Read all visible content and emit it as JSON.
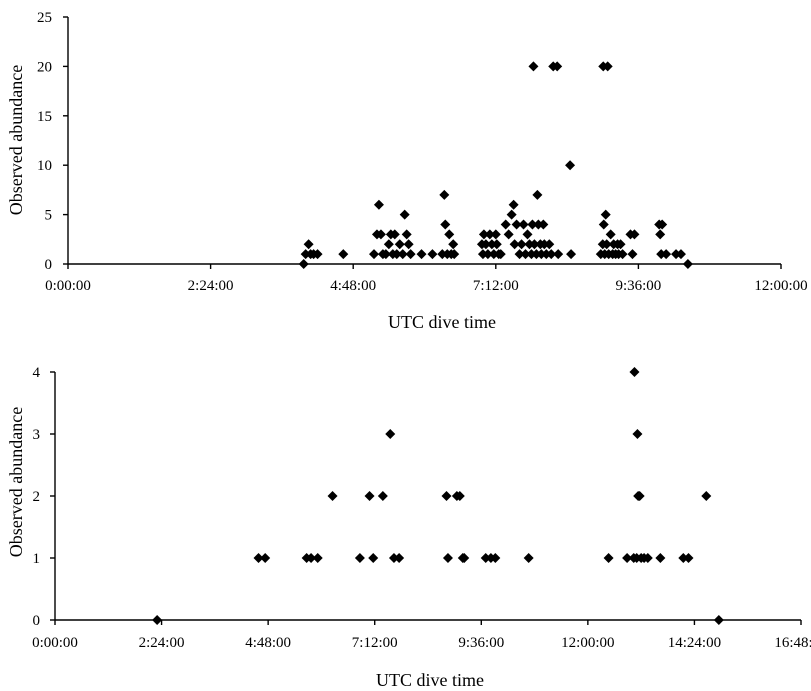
{
  "chart_data": [
    {
      "type": "scatter",
      "xlabel": "UTC dive time",
      "ylabel": "Observed abundance",
      "xlim": [
        "0:00:00",
        "12:00:00"
      ],
      "ylim": [
        0,
        25
      ],
      "x_ticks": [
        "0:00:00",
        "2:24:00",
        "4:48:00",
        "7:12:00",
        "9:36:00",
        "12:00:00"
      ],
      "y_ticks": [
        "0",
        "5",
        "10",
        "15",
        "20",
        "25"
      ],
      "grid": false,
      "marker": "diamond",
      "color": "#000000",
      "points": [
        {
          "x": "3:58:00",
          "y": 0
        },
        {
          "x": "4:00:00",
          "y": 1
        },
        {
          "x": "4:03:00",
          "y": 2
        },
        {
          "x": "4:05:00",
          "y": 1
        },
        {
          "x": "4:08:00",
          "y": 1
        },
        {
          "x": "4:12:00",
          "y": 1
        },
        {
          "x": "4:38:00",
          "y": 1
        },
        {
          "x": "5:09:00",
          "y": 1
        },
        {
          "x": "5:12:00",
          "y": 3
        },
        {
          "x": "5:14:00",
          "y": 6
        },
        {
          "x": "5:16:00",
          "y": 3
        },
        {
          "x": "5:18:00",
          "y": 1
        },
        {
          "x": "5:21:00",
          "y": 1
        },
        {
          "x": "5:24:00",
          "y": 2
        },
        {
          "x": "5:26:00",
          "y": 3
        },
        {
          "x": "5:28:00",
          "y": 1
        },
        {
          "x": "5:30:00",
          "y": 3
        },
        {
          "x": "5:32:00",
          "y": 1
        },
        {
          "x": "5:35:00",
          "y": 2
        },
        {
          "x": "5:38:00",
          "y": 1
        },
        {
          "x": "5:40:00",
          "y": 5
        },
        {
          "x": "5:42:00",
          "y": 3
        },
        {
          "x": "5:44:00",
          "y": 2
        },
        {
          "x": "5:46:00",
          "y": 1
        },
        {
          "x": "5:57:00",
          "y": 1
        },
        {
          "x": "6:08:00",
          "y": 1
        },
        {
          "x": "6:18:00",
          "y": 1
        },
        {
          "x": "6:20:00",
          "y": 7
        },
        {
          "x": "6:21:00",
          "y": 4
        },
        {
          "x": "6:23:00",
          "y": 1
        },
        {
          "x": "6:25:00",
          "y": 3
        },
        {
          "x": "6:27:00",
          "y": 1
        },
        {
          "x": "6:29:00",
          "y": 2
        },
        {
          "x": "6:30:00",
          "y": 1
        },
        {
          "x": "6:58:00",
          "y": 2
        },
        {
          "x": "6:59:00",
          "y": 1
        },
        {
          "x": "7:00:00",
          "y": 3
        },
        {
          "x": "7:02:00",
          "y": 2
        },
        {
          "x": "7:04:00",
          "y": 1
        },
        {
          "x": "7:06:00",
          "y": 3
        },
        {
          "x": "7:08:00",
          "y": 2
        },
        {
          "x": "7:10:00",
          "y": 1
        },
        {
          "x": "7:12:00",
          "y": 3
        },
        {
          "x": "7:13:00",
          "y": 2
        },
        {
          "x": "7:15:00",
          "y": 1
        },
        {
          "x": "7:17:00",
          "y": 1
        },
        {
          "x": "7:22:00",
          "y": 4
        },
        {
          "x": "7:25:00",
          "y": 3
        },
        {
          "x": "7:28:00",
          "y": 5
        },
        {
          "x": "7:30:00",
          "y": 6
        },
        {
          "x": "7:31:00",
          "y": 2
        },
        {
          "x": "7:33:00",
          "y": 4
        },
        {
          "x": "7:36:00",
          "y": 1
        },
        {
          "x": "7:38:00",
          "y": 2
        },
        {
          "x": "7:40:00",
          "y": 4
        },
        {
          "x": "7:42:00",
          "y": 1
        },
        {
          "x": "7:44:00",
          "y": 3
        },
        {
          "x": "7:46:00",
          "y": 2
        },
        {
          "x": "7:48:00",
          "y": 1
        },
        {
          "x": "7:49:00",
          "y": 4
        },
        {
          "x": "7:50:00",
          "y": 20
        },
        {
          "x": "7:51:00",
          "y": 2
        },
        {
          "x": "7:53:00",
          "y": 1
        },
        {
          "x": "7:54:00",
          "y": 7
        },
        {
          "x": "7:55:00",
          "y": 4
        },
        {
          "x": "7:57:00",
          "y": 2
        },
        {
          "x": "7:58:00",
          "y": 1
        },
        {
          "x": "8:00:00",
          "y": 4
        },
        {
          "x": "8:01:00",
          "y": 2
        },
        {
          "x": "8:03:00",
          "y": 1
        },
        {
          "x": "8:06:00",
          "y": 2
        },
        {
          "x": "8:08:00",
          "y": 1
        },
        {
          "x": "8:10:00",
          "y": 20
        },
        {
          "x": "8:14:00",
          "y": 20
        },
        {
          "x": "8:15:00",
          "y": 1
        },
        {
          "x": "8:27:00",
          "y": 10
        },
        {
          "x": "8:28:00",
          "y": 1
        },
        {
          "x": "8:58:00",
          "y": 1
        },
        {
          "x": "9:00:00",
          "y": 2
        },
        {
          "x": "9:00:30",
          "y": 20
        },
        {
          "x": "9:01:00",
          "y": 4
        },
        {
          "x": "9:02:00",
          "y": 1
        },
        {
          "x": "9:03:00",
          "y": 5
        },
        {
          "x": "9:04:00",
          "y": 2
        },
        {
          "x": "9:05:00",
          "y": 20
        },
        {
          "x": "9:06:00",
          "y": 1
        },
        {
          "x": "9:08:00",
          "y": 3
        },
        {
          "x": "9:10:00",
          "y": 1
        },
        {
          "x": "9:11:00",
          "y": 2
        },
        {
          "x": "9:13:00",
          "y": 1
        },
        {
          "x": "9:15:00",
          "y": 2
        },
        {
          "x": "9:16:00",
          "y": 1
        },
        {
          "x": "9:18:00",
          "y": 2
        },
        {
          "x": "9:20:00",
          "y": 1
        },
        {
          "x": "9:28:00",
          "y": 3
        },
        {
          "x": "9:30:00",
          "y": 1
        },
        {
          "x": "9:32:00",
          "y": 3
        },
        {
          "x": "9:57:00",
          "y": 4
        },
        {
          "x": "9:58:00",
          "y": 3
        },
        {
          "x": "9:59:00",
          "y": 1
        },
        {
          "x": "10:00:00",
          "y": 4
        },
        {
          "x": "10:04:00",
          "y": 1
        },
        {
          "x": "10:14:00",
          "y": 1
        },
        {
          "x": "10:19:00",
          "y": 1
        },
        {
          "x": "10:26:00",
          "y": 0
        }
      ]
    },
    {
      "type": "scatter",
      "xlabel": "UTC dive time",
      "ylabel": "Observed abundance",
      "xlim": [
        "0:00:00",
        "16:48:00"
      ],
      "ylim": [
        0,
        4
      ],
      "x_ticks": [
        "0:00:00",
        "2:24:00",
        "4:48:00",
        "7:12:00",
        "9:36:00",
        "12:00:00",
        "14:24:00",
        "16:48:00"
      ],
      "y_ticks": [
        "0",
        "1",
        "2",
        "3",
        "4"
      ],
      "grid": false,
      "marker": "diamond",
      "color": "#000000",
      "points": [
        {
          "x": "2:18:00",
          "y": 0
        },
        {
          "x": "4:35:00",
          "y": 1
        },
        {
          "x": "4:44:00",
          "y": 1
        },
        {
          "x": "5:40:00",
          "y": 1
        },
        {
          "x": "5:46:00",
          "y": 1
        },
        {
          "x": "5:55:00",
          "y": 1
        },
        {
          "x": "6:15:00",
          "y": 2
        },
        {
          "x": "6:52:00",
          "y": 1
        },
        {
          "x": "7:05:00",
          "y": 2
        },
        {
          "x": "7:10:00",
          "y": 1
        },
        {
          "x": "7:23:00",
          "y": 2
        },
        {
          "x": "7:33:00",
          "y": 3
        },
        {
          "x": "7:38:00",
          "y": 1
        },
        {
          "x": "7:45:00",
          "y": 1
        },
        {
          "x": "8:49:00",
          "y": 2
        },
        {
          "x": "8:51:00",
          "y": 1
        },
        {
          "x": "9:03:00",
          "y": 2
        },
        {
          "x": "9:07:00",
          "y": 2
        },
        {
          "x": "9:11:00",
          "y": 1
        },
        {
          "x": "9:13:00",
          "y": 1
        },
        {
          "x": "9:42:00",
          "y": 1
        },
        {
          "x": "9:49:00",
          "y": 1
        },
        {
          "x": "9:55:00",
          "y": 1
        },
        {
          "x": "10:40:00",
          "y": 1
        },
        {
          "x": "12:28:00",
          "y": 1
        },
        {
          "x": "12:53:00",
          "y": 1
        },
        {
          "x": "13:02:00",
          "y": 1
        },
        {
          "x": "13:03:00",
          "y": 4
        },
        {
          "x": "13:06:00",
          "y": 1
        },
        {
          "x": "13:07:00",
          "y": 3
        },
        {
          "x": "13:08:00",
          "y": 2
        },
        {
          "x": "13:10:00",
          "y": 2
        },
        {
          "x": "13:12:00",
          "y": 1
        },
        {
          "x": "13:16:00",
          "y": 1
        },
        {
          "x": "13:21:00",
          "y": 1
        },
        {
          "x": "13:38:00",
          "y": 1
        },
        {
          "x": "14:09:00",
          "y": 1
        },
        {
          "x": "14:16:00",
          "y": 1
        },
        {
          "x": "14:40:00",
          "y": 2
        },
        {
          "x": "14:57:00",
          "y": 0
        }
      ]
    }
  ]
}
